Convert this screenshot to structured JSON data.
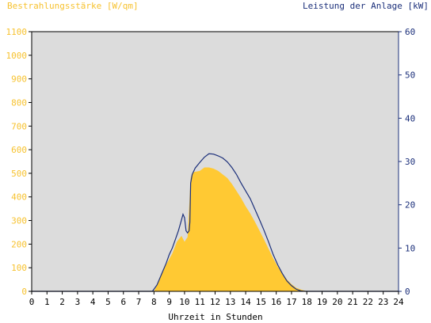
{
  "chart_data": {
    "type": "area",
    "title_left": "Bestrahlungsstärke [W/qm]",
    "title_right": "Leistung der Anlage [kW]",
    "xlabel": "Uhrzeit in Stunden",
    "xlim": [
      0,
      24
    ],
    "x_ticks": [
      0,
      1,
      2,
      3,
      4,
      5,
      6,
      7,
      8,
      9,
      10,
      11,
      12,
      13,
      14,
      15,
      16,
      17,
      18,
      19,
      20,
      21,
      22,
      23,
      24
    ],
    "ylim_left": [
      0,
      1100
    ],
    "y_ticks_left": [
      0,
      100,
      200,
      300,
      400,
      500,
      600,
      700,
      800,
      900,
      1000,
      1100
    ],
    "ylim_right": [
      0,
      60
    ],
    "y_ticks_right": [
      0,
      10,
      20,
      30,
      40,
      50,
      60
    ],
    "colors": {
      "left_axis": "#f7c22f",
      "right_axis": "#1b2f7a",
      "plot_bg": "#dcdcdc",
      "area": "#ffc933",
      "line": "#1b2f7a"
    },
    "series": [
      {
        "name": "Bestrahlungsstärke [W/qm]",
        "axis": "left",
        "kind": "area",
        "x": [
          0,
          8.0,
          8.3,
          8.6,
          8.9,
          9.2,
          9.5,
          9.8,
          10.0,
          10.2,
          10.4,
          10.5,
          10.6,
          11.0,
          11.3,
          11.6,
          11.9,
          12.2,
          12.5,
          12.8,
          13.1,
          13.4,
          13.7,
          14.0,
          14.3,
          14.6,
          14.9,
          15.2,
          15.5,
          15.8,
          16.1,
          16.4,
          16.7,
          17.0,
          17.3,
          17.6,
          17.9,
          18.1,
          24
        ],
        "y": [
          0,
          0,
          40,
          90,
          125,
          160,
          210,
          235,
          210,
          230,
          480,
          500,
          505,
          510,
          525,
          525,
          520,
          510,
          495,
          480,
          455,
          425,
          395,
          360,
          330,
          295,
          258,
          220,
          180,
          140,
          105,
          75,
          50,
          30,
          15,
          8,
          2,
          0,
          0
        ]
      },
      {
        "name": "Leistung der Anlage [kW]",
        "axis": "right",
        "kind": "line",
        "x": [
          0,
          7.9,
          8.2,
          8.5,
          8.8,
          9.0,
          9.2,
          9.4,
          9.6,
          9.8,
          9.9,
          10.0,
          10.1,
          10.2,
          10.3,
          10.35,
          10.4,
          10.5,
          10.7,
          11.0,
          11.3,
          11.6,
          11.9,
          12.2,
          12.5,
          12.8,
          13.1,
          13.4,
          13.7,
          14.0,
          14.3,
          14.6,
          14.9,
          15.2,
          15.5,
          15.8,
          16.1,
          16.4,
          16.7,
          17.0,
          17.3,
          17.6,
          17.9,
          18.1,
          24
        ],
        "y": [
          0,
          0,
          1.5,
          4,
          6.5,
          8.5,
          10,
          12,
          14,
          16.5,
          17.8,
          17,
          14,
          13.5,
          14,
          16,
          25,
          27,
          28.5,
          29.8,
          31,
          31.8,
          31.7,
          31.3,
          30.8,
          29.9,
          28.6,
          27,
          25,
          23.2,
          21.4,
          19,
          16.6,
          14.1,
          11.4,
          8.5,
          6.1,
          4.1,
          2.4,
          1.3,
          0.5,
          0.1,
          0,
          0,
          0
        ]
      }
    ]
  }
}
